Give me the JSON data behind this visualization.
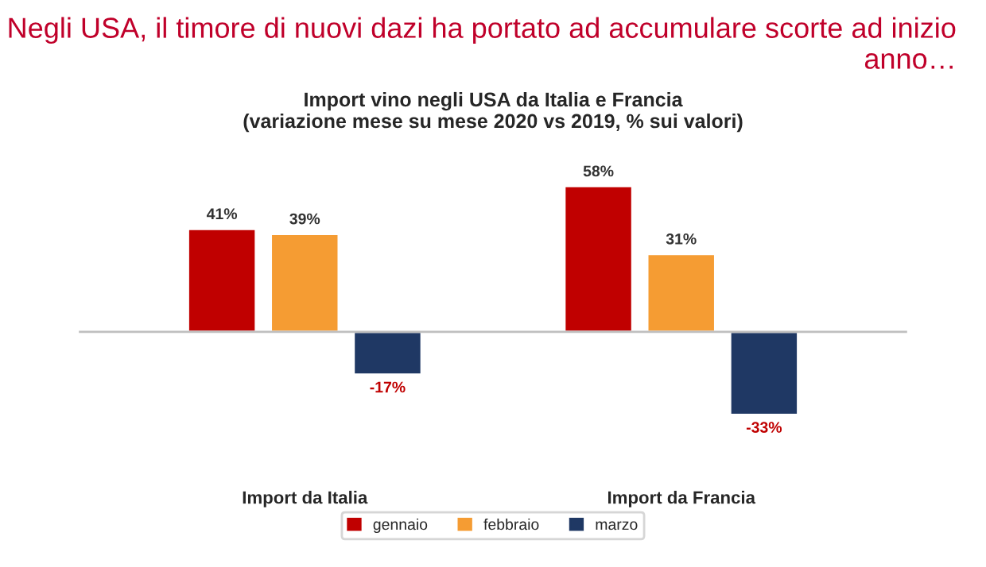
{
  "chart_data": {
    "type": "bar",
    "title": "Negli USA, il timore di nuovi dazi ha portato ad accumulare scorte ad inizio anno…",
    "subtitle": "Import vino negli USA da Italia e Francia\n(variazione mese su mese 2020 vs 2019, % sui valori)",
    "categories": [
      "Import da Italia",
      "Import da Francia"
    ],
    "series": [
      {
        "name": "gennaio",
        "color": "#c00000",
        "values": [
          41,
          58
        ],
        "value_labels": [
          "41%",
          "58%"
        ]
      },
      {
        "name": "febbraio",
        "color": "#f59c33",
        "values": [
          39,
          31
        ],
        "value_labels": [
          "39%",
          "31%"
        ]
      },
      {
        "name": "marzo",
        "color": "#1f3864",
        "values": [
          -17,
          -33
        ],
        "value_labels": [
          "-17%",
          "-33%"
        ]
      }
    ],
    "tick_labels": "x",
    "grid": false,
    "legend": "bottom"
  }
}
